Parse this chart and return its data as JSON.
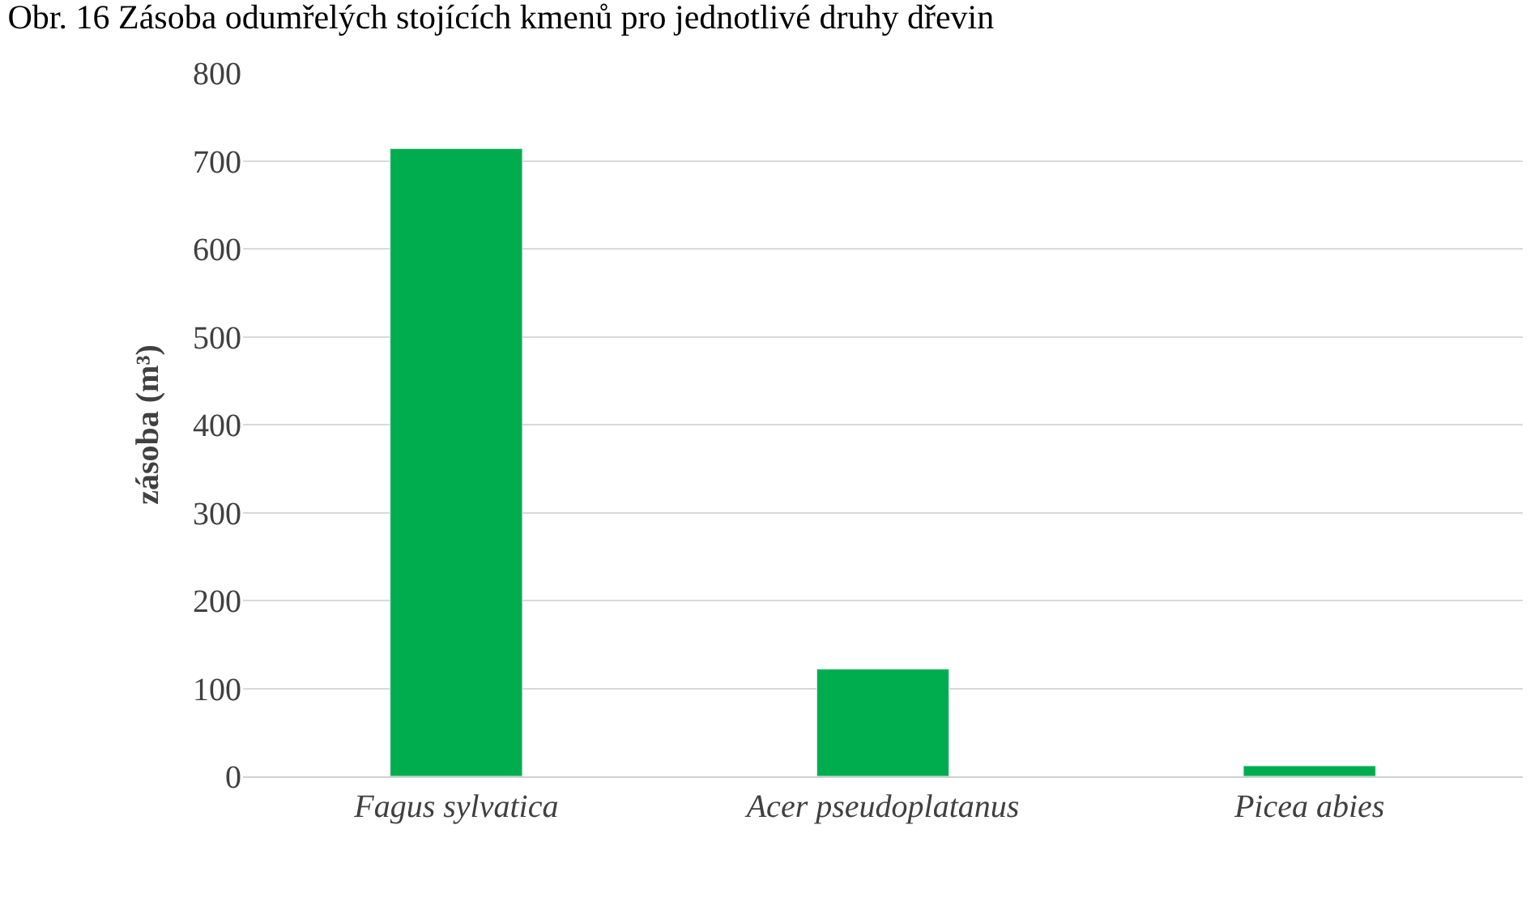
{
  "chart_data": {
    "type": "bar",
    "title": "Obr. 16 Zásoba odumřelých stojících kmenů pro jednotlivé druhy dřevin",
    "ylabel": "zásoba (m³)",
    "categories": [
      "Fagus sylvatica",
      "Acer pseudoplatanus",
      "Picea abies"
    ],
    "values": [
      714,
      122,
      12
    ],
    "color": "#00ad4e",
    "ylim": [
      0,
      800
    ],
    "yticks": [
      0,
      100,
      200,
      300,
      400,
      500,
      600,
      700,
      800
    ],
    "grid": "y"
  }
}
